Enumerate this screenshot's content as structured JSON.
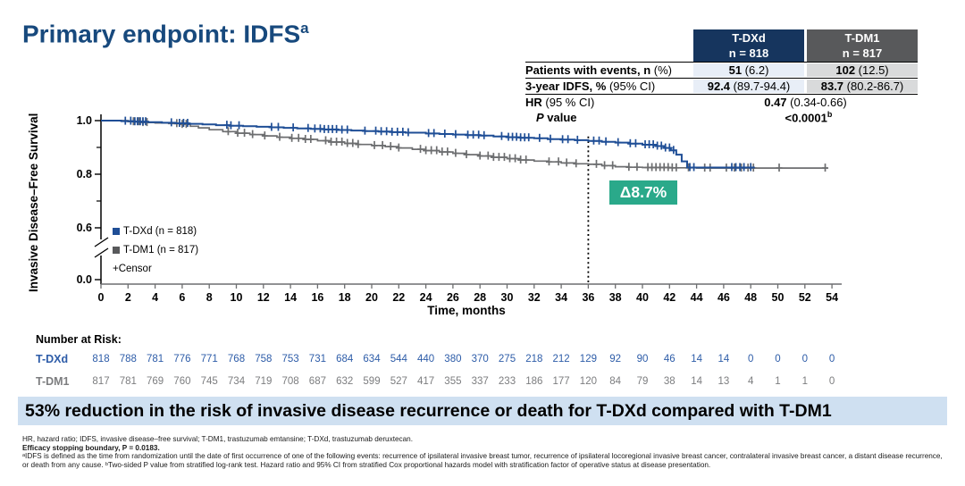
{
  "title": {
    "text": "Primary endpoint: IDFS",
    "sup": "a",
    "color": "#17497d"
  },
  "summary_table": {
    "columns": [
      {
        "name": "T-DXd",
        "n_label": "n = 818",
        "header_bg": "#16355e",
        "cell_bg": "#e8eef7"
      },
      {
        "name": "T-DM1",
        "n_label": "n = 817",
        "header_bg": "#58595b",
        "cell_bg": "#d9dadb"
      }
    ],
    "rows": [
      {
        "label_bold": "Patients with events, n",
        "label_rest": " (%)",
        "tdxd_bold": "51",
        "tdxd_rest": " (6.2)",
        "tdm1_bold": "102",
        "tdm1_rest": " (12.5)"
      },
      {
        "label_bold": "3-year IDFS, %",
        "label_rest": " (95% CI)",
        "tdxd_bold": "92.4",
        "tdxd_rest": " (89.7-94.4)",
        "tdm1_bold": "83.7",
        "tdm1_rest": " (80.2-86.7)"
      }
    ],
    "hr_row": {
      "label_bold": "HR",
      "label_rest": " (95 % CI)",
      "value_bold": "0.47",
      "value_rest": " (0.34-0.66)"
    },
    "p_row": {
      "label_italic": "P",
      "label_rest": " value",
      "value_bold": "<0.0001",
      "value_sup": "b"
    }
  },
  "chart_data": {
    "type": "line",
    "subtype": "kaplan-meier-step",
    "xlabel": "Time, months",
    "ylabel": "Invasive Disease–Free Survival",
    "xticks": [
      0,
      2,
      4,
      6,
      8,
      10,
      12,
      14,
      16,
      18,
      20,
      22,
      24,
      26,
      28,
      30,
      32,
      34,
      36,
      38,
      40,
      42,
      44,
      46,
      48,
      50,
      52,
      54
    ],
    "yticks_labeled": [
      1.0,
      0.8,
      0.6,
      0.0
    ],
    "yticks_minor": [
      0.9,
      0.7
    ],
    "ylim_shown": [
      0.6,
      1.0
    ],
    "axis_break": true,
    "dashed_line_month": 36,
    "annotation": {
      "label": "Δ8.7%",
      "bg": "#2aa98a",
      "x_month": 36
    },
    "legend_censor_label": "+Censor",
    "censor_plus_symbol": "+",
    "series": [
      {
        "name": "T-DXd (n = 818)",
        "color": "#1f4e96",
        "stroke_width": 2.0,
        "three_year_idfs": 92.4,
        "points": [
          [
            0,
            1.0
          ],
          [
            1.5,
            0.998
          ],
          [
            2.5,
            0.996
          ],
          [
            3.5,
            0.994
          ],
          [
            4.5,
            0.992
          ],
          [
            5.5,
            0.99
          ],
          [
            6.5,
            0.988
          ],
          [
            7.5,
            0.986
          ],
          [
            8.5,
            0.983
          ],
          [
            9.5,
            0.981
          ],
          [
            10.5,
            0.979
          ],
          [
            11.5,
            0.977
          ],
          [
            12.5,
            0.975
          ],
          [
            13.5,
            0.973
          ],
          [
            14.5,
            0.971
          ],
          [
            15.5,
            0.969
          ],
          [
            16.5,
            0.967
          ],
          [
            17.5,
            0.965
          ],
          [
            18.5,
            0.963
          ],
          [
            19.5,
            0.961
          ],
          [
            20.5,
            0.959
          ],
          [
            21.5,
            0.957
          ],
          [
            22.5,
            0.955
          ],
          [
            24,
            0.952
          ],
          [
            25,
            0.95
          ],
          [
            26,
            0.948
          ],
          [
            27,
            0.946
          ],
          [
            28,
            0.944
          ],
          [
            29,
            0.941
          ],
          [
            30,
            0.938
          ],
          [
            31,
            0.936
          ],
          [
            32,
            0.934
          ],
          [
            33,
            0.931
          ],
          [
            34,
            0.929
          ],
          [
            35,
            0.927
          ],
          [
            36,
            0.924
          ],
          [
            37,
            0.921
          ],
          [
            38,
            0.918
          ],
          [
            39,
            0.914
          ],
          [
            40,
            0.91
          ],
          [
            41,
            0.905
          ],
          [
            41.6,
            0.898
          ],
          [
            42.1,
            0.889
          ],
          [
            42.5,
            0.873
          ],
          [
            42.9,
            0.848
          ],
          [
            43.3,
            0.825
          ],
          [
            48.3,
            0.825
          ]
        ],
        "censors": [
          1.8,
          2.2,
          2.5,
          2.7,
          2.9,
          3.1,
          3.3,
          5.2,
          5.8,
          6.1,
          6.4,
          9.3,
          9.6,
          10.2,
          12.6,
          13.1,
          14.2,
          15.3,
          15.8,
          16.2,
          16.5,
          16.8,
          17.1,
          17.4,
          17.8,
          18.2,
          19.5,
          20.3,
          20.7,
          21.1,
          21.5,
          21.9,
          22.3,
          22.7,
          24.2,
          24.6,
          25.4,
          26.2,
          27.1,
          27.5,
          27.9,
          28.3,
          29.6,
          30.1,
          30.4,
          30.7,
          31.0,
          31.3,
          31.6,
          32.4,
          33.2,
          34.1,
          34.5,
          35.2,
          36.4,
          36.8,
          37.3,
          38.2,
          39.1,
          39.5,
          40.2,
          40.5,
          40.8,
          41.1,
          41.4,
          41.7,
          42.0,
          42.3,
          43.5,
          43.8,
          46.6,
          46.9,
          47.2,
          47.5,
          48.0
        ]
      },
      {
        "name": "T-DM1 (n = 817)",
        "color": "#6d6e70",
        "stroke_width": 1.7,
        "three_year_idfs": 83.7,
        "points": [
          [
            0,
            1.0
          ],
          [
            2,
            0.996
          ],
          [
            3,
            0.993
          ],
          [
            4,
            0.991
          ],
          [
            5,
            0.989
          ],
          [
            6,
            0.986
          ],
          [
            6.6,
            0.979
          ],
          [
            7.2,
            0.973
          ],
          [
            8,
            0.966
          ],
          [
            9,
            0.959
          ],
          [
            10,
            0.953
          ],
          [
            11,
            0.948
          ],
          [
            12,
            0.943
          ],
          [
            13,
            0.938
          ],
          [
            14,
            0.934
          ],
          [
            15,
            0.93
          ],
          [
            16,
            0.925
          ],
          [
            17,
            0.92
          ],
          [
            18,
            0.915
          ],
          [
            19,
            0.911
          ],
          [
            20,
            0.907
          ],
          [
            21,
            0.903
          ],
          [
            22,
            0.898
          ],
          [
            23,
            0.893
          ],
          [
            24,
            0.888
          ],
          [
            25,
            0.883
          ],
          [
            26,
            0.878
          ],
          [
            27,
            0.873
          ],
          [
            28,
            0.868
          ],
          [
            29,
            0.863
          ],
          [
            30,
            0.858
          ],
          [
            31,
            0.853
          ],
          [
            32,
            0.849
          ],
          [
            33,
            0.846
          ],
          [
            34,
            0.842
          ],
          [
            35,
            0.839
          ],
          [
            36,
            0.837
          ],
          [
            37,
            0.832
          ],
          [
            38,
            0.828
          ],
          [
            39,
            0.826
          ],
          [
            40,
            0.825
          ],
          [
            42,
            0.824
          ],
          [
            44,
            0.823
          ],
          [
            53.7,
            0.823
          ]
        ],
        "censors": [
          2.4,
          2.8,
          3.1,
          3.4,
          5.6,
          6.0,
          6.3,
          9.4,
          10.1,
          10.6,
          11.2,
          12.1,
          13.2,
          14.1,
          14.6,
          15.1,
          15.5,
          16.6,
          17.0,
          17.4,
          17.8,
          18.2,
          18.6,
          19.0,
          20.2,
          20.8,
          21.4,
          22.0,
          23.6,
          24.0,
          24.4,
          24.8,
          25.2,
          25.6,
          26.2,
          27.0,
          28.0,
          28.6,
          29.0,
          29.4,
          29.8,
          30.2,
          30.6,
          31.0,
          31.4,
          33.1,
          33.8,
          34.4,
          35.1,
          36.6,
          37.2,
          37.8,
          39.0,
          39.6,
          40.4,
          40.7,
          41.0,
          41.3,
          41.6,
          41.9,
          42.2,
          42.5,
          43.4,
          44.6,
          45.0,
          46.2,
          46.8,
          47.3,
          47.8,
          48.2,
          50.1,
          53.5
        ]
      }
    ]
  },
  "risk_table": {
    "heading": "Number at Risk:",
    "rows": [
      {
        "label": "T-DXd",
        "color": "#2d5ca8",
        "values": [
          818,
          788,
          781,
          776,
          771,
          768,
          758,
          753,
          731,
          684,
          634,
          544,
          440,
          380,
          370,
          275,
          218,
          212,
          129,
          92,
          90,
          46,
          14,
          14,
          0,
          0,
          0,
          0
        ]
      },
      {
        "label": "T-DM1",
        "color": "#7c7d7f",
        "values": [
          817,
          781,
          769,
          760,
          745,
          734,
          719,
          708,
          687,
          632,
          599,
          527,
          417,
          355,
          337,
          233,
          186,
          177,
          120,
          84,
          79,
          38,
          14,
          13,
          4,
          1,
          1,
          0
        ]
      }
    ]
  },
  "banner": {
    "text": "53% reduction in the risk of invasive disease recurrence or death for T-DXd compared with T-DM1",
    "bg": "#cfe0f1"
  },
  "footnotes": {
    "line1": "HR, hazard ratio; IDFS, invasive disease–free survival; T-DM1, trastuzumab emtansine; T-DXd, trastuzumab deruxtecan.",
    "line2": "Efficacy stopping boundary, P = 0.0183.",
    "para": "ᵃIDFS is defined as the time from randomization until the date of first occurrence of one of the following events: recurrence of ipsilateral invasive breast tumor, recurrence of ipsilateral locoregional invasive breast cancer, contralateral invasive breast cancer, a distant disease recurrence, or death from any cause. ᵇTwo-sided P value from stratified log-rank test. Hazard ratio and 95% CI from stratified Cox proportional hazards model with stratification factor of operative status at disease presentation."
  }
}
